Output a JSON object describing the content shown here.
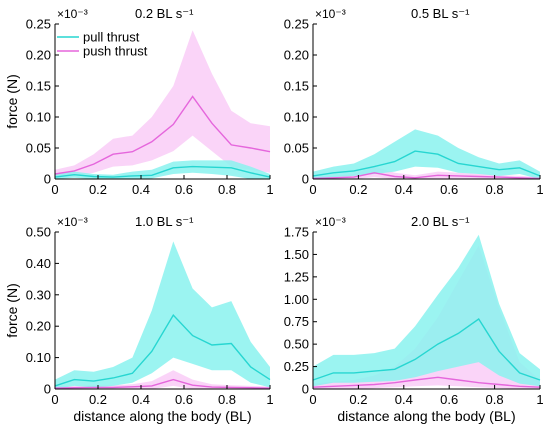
{
  "colors": {
    "pull": "#27d6d1",
    "pull_band": "#8af2ee",
    "push": "#e566dc",
    "push_band": "#f8c6f6",
    "axis": "#000000"
  },
  "figure": {
    "ylabel": "force (N)",
    "xlabel": "distance along the body (BL)",
    "legend": [
      "pull thrust",
      "push thrust"
    ]
  },
  "chart_data": [
    {
      "type": "area",
      "title": "0.2 BL s⁻¹",
      "multiplier": "×10⁻³",
      "xlabel": "",
      "ylabel": "force (N)",
      "xlim": [
        0,
        1
      ],
      "ylim": [
        0,
        0.25
      ],
      "xticks": [
        "0",
        "0.2",
        "0.4",
        "0.6",
        "0.8",
        "1"
      ],
      "yticks": [
        "0",
        "0.05",
        "0.10",
        "0.15",
        "0.20",
        "0.25"
      ],
      "ytick_values": [
        0,
        0.05,
        0.1,
        0.15,
        0.2,
        0.25
      ],
      "legend": "top-left",
      "x": [
        0,
        0.09,
        0.18,
        0.27,
        0.36,
        0.45,
        0.55,
        0.64,
        0.73,
        0.82,
        0.91,
        1.0
      ],
      "series": [
        {
          "name": "pull thrust",
          "values": [
            0.003,
            0.007,
            0.004,
            0.003,
            0.005,
            0.006,
            0.018,
            0.02,
            0.019,
            0.018,
            0.01,
            0.003
          ],
          "lower": [
            0.0,
            0.002,
            0.0,
            0.0,
            0.0,
            0.001,
            0.008,
            0.01,
            0.008,
            0.005,
            0.0,
            0.0
          ],
          "upper": [
            0.008,
            0.012,
            0.008,
            0.007,
            0.012,
            0.015,
            0.028,
            0.03,
            0.03,
            0.03,
            0.02,
            0.008
          ]
        },
        {
          "name": "push thrust",
          "values": [
            0.008,
            0.013,
            0.024,
            0.04,
            0.044,
            0.06,
            0.088,
            0.133,
            0.09,
            0.055,
            0.05,
            0.044
          ],
          "lower": [
            0.002,
            0.005,
            0.01,
            0.02,
            0.022,
            0.03,
            0.045,
            0.07,
            0.045,
            0.02,
            0.015,
            0.01
          ],
          "upper": [
            0.015,
            0.022,
            0.04,
            0.065,
            0.07,
            0.1,
            0.15,
            0.24,
            0.17,
            0.11,
            0.09,
            0.085
          ]
        }
      ]
    },
    {
      "type": "area",
      "title": "0.5 BL s⁻¹",
      "multiplier": "×10⁻³",
      "xlabel": "",
      "ylabel": "",
      "xlim": [
        0,
        1
      ],
      "ylim": [
        0,
        0.25
      ],
      "xticks": [
        "0",
        "0.2",
        "0.4",
        "0.6",
        "0.8",
        "1"
      ],
      "yticks": [
        "0",
        "0.05",
        "0.10",
        "0.15",
        "0.20",
        "0.25"
      ],
      "ytick_values": [
        0,
        0.05,
        0.1,
        0.15,
        0.2,
        0.25
      ],
      "x": [
        0,
        0.09,
        0.18,
        0.27,
        0.36,
        0.45,
        0.55,
        0.64,
        0.73,
        0.82,
        0.91,
        1.0
      ],
      "series": [
        {
          "name": "pull thrust",
          "values": [
            0.005,
            0.01,
            0.013,
            0.02,
            0.028,
            0.045,
            0.04,
            0.025,
            0.02,
            0.015,
            0.018,
            0.005
          ],
          "lower": [
            0.0,
            0.003,
            0.005,
            0.008,
            0.012,
            0.02,
            0.018,
            0.01,
            0.008,
            0.005,
            0.008,
            0.0
          ],
          "upper": [
            0.012,
            0.02,
            0.025,
            0.04,
            0.06,
            0.08,
            0.07,
            0.05,
            0.035,
            0.025,
            0.03,
            0.012
          ]
        },
        {
          "name": "push thrust",
          "values": [
            0.001,
            0.002,
            0.003,
            0.01,
            0.004,
            0.002,
            0.006,
            0.005,
            0.004,
            0.003,
            0.002,
            0.001
          ],
          "lower": [
            0.0,
            0.0,
            0.0,
            0.003,
            0.0,
            0.0,
            0.0,
            0.0,
            0.0,
            0.0,
            0.0,
            0.0
          ],
          "upper": [
            0.003,
            0.005,
            0.008,
            0.02,
            0.01,
            0.006,
            0.012,
            0.01,
            0.008,
            0.006,
            0.005,
            0.003
          ]
        }
      ]
    },
    {
      "type": "area",
      "title": "1.0 BL s⁻¹",
      "multiplier": "×10⁻³",
      "xlabel": "distance along the body (BL)",
      "ylabel": "force (N)",
      "xlim": [
        0,
        1
      ],
      "ylim": [
        0,
        0.5
      ],
      "xticks": [
        "0",
        "0.2",
        "0.4",
        "0.6",
        "0.8",
        "1"
      ],
      "yticks": [
        "0",
        "0.10",
        "0.20",
        "0.30",
        "0.40",
        "0.50"
      ],
      "ytick_values": [
        0,
        0.1,
        0.2,
        0.3,
        0.4,
        0.5
      ],
      "x": [
        0,
        0.09,
        0.18,
        0.27,
        0.36,
        0.45,
        0.55,
        0.64,
        0.73,
        0.82,
        0.91,
        1.0
      ],
      "series": [
        {
          "name": "pull thrust",
          "values": [
            0.01,
            0.03,
            0.025,
            0.035,
            0.05,
            0.12,
            0.235,
            0.17,
            0.14,
            0.145,
            0.07,
            0.03
          ],
          "lower": [
            0.0,
            0.01,
            0.005,
            0.01,
            0.02,
            0.05,
            0.1,
            0.08,
            0.06,
            0.06,
            0.02,
            0.005
          ],
          "upper": [
            0.03,
            0.06,
            0.055,
            0.07,
            0.1,
            0.25,
            0.47,
            0.32,
            0.26,
            0.28,
            0.15,
            0.07
          ]
        },
        {
          "name": "push thrust",
          "values": [
            0.003,
            0.004,
            0.005,
            0.005,
            0.007,
            0.01,
            0.03,
            0.012,
            0.006,
            0.005,
            0.004,
            0.003
          ],
          "lower": [
            0.0,
            0.0,
            0.0,
            0.0,
            0.0,
            0.0,
            0.01,
            0.0,
            0.0,
            0.0,
            0.0,
            0.0
          ],
          "upper": [
            0.008,
            0.01,
            0.012,
            0.012,
            0.015,
            0.025,
            0.06,
            0.03,
            0.015,
            0.012,
            0.01,
            0.008
          ]
        }
      ]
    },
    {
      "type": "area",
      "title": "2.0 BL s⁻¹",
      "multiplier": "×10⁻³",
      "xlabel": "distance along the body (BL)",
      "ylabel": "",
      "xlim": [
        0,
        1
      ],
      "ylim": [
        0,
        1.75
      ],
      "xticks": [
        "0",
        "0.2",
        "0.4",
        "0.6",
        "0.8",
        "1"
      ],
      "yticks": [
        "0",
        "0.25",
        "0.50",
        "0.75",
        "1.00",
        "1.25",
        "1.50",
        "1.75"
      ],
      "ytick_values": [
        0,
        0.25,
        0.5,
        0.75,
        1.0,
        1.25,
        1.5,
        1.75
      ],
      "x": [
        0,
        0.09,
        0.18,
        0.27,
        0.36,
        0.45,
        0.55,
        0.64,
        0.73,
        0.82,
        0.91,
        1.0
      ],
      "series": [
        {
          "name": "pull thrust",
          "values": [
            0.1,
            0.18,
            0.18,
            0.2,
            0.22,
            0.33,
            0.5,
            0.62,
            0.78,
            0.42,
            0.18,
            0.1
          ],
          "lower": [
            0.03,
            0.07,
            0.07,
            0.08,
            0.09,
            0.13,
            0.2,
            0.25,
            0.3,
            0.15,
            0.06,
            0.03
          ],
          "upper": [
            0.25,
            0.38,
            0.38,
            0.4,
            0.45,
            0.7,
            1.05,
            1.35,
            1.72,
            0.95,
            0.4,
            0.22
          ]
        },
        {
          "name": "push thrust",
          "values": [
            0.02,
            0.03,
            0.04,
            0.05,
            0.07,
            0.1,
            0.13,
            0.1,
            0.07,
            0.05,
            0.03,
            0.02
          ],
          "lower": [
            0.0,
            0.0,
            0.0,
            0.01,
            0.02,
            0.03,
            0.04,
            0.03,
            0.02,
            0.01,
            0.0,
            0.0
          ],
          "upper": [
            0.06,
            0.08,
            0.1,
            0.15,
            0.25,
            0.45,
            0.8,
            1.2,
            1.6,
            0.9,
            0.3,
            0.1
          ]
        }
      ]
    }
  ]
}
